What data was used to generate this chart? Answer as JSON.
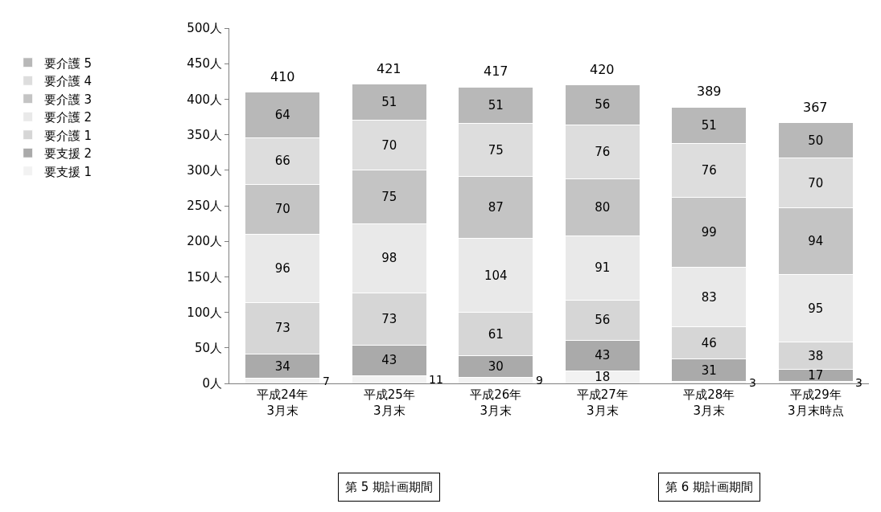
{
  "chart_data": {
    "type": "bar",
    "stacked": true,
    "categories": [
      "平成24年\n3月末",
      "平成25年\n3月末",
      "平成26年\n3月末",
      "平成27年\n3月末",
      "平成28年\n3月末",
      "平成29年\n3月末時点"
    ],
    "series": [
      {
        "name": "要支援 1",
        "color": "#f2f2f2",
        "values": [
          7,
          11,
          9,
          18,
          3,
          3
        ]
      },
      {
        "name": "要支援 2",
        "color": "#aaaaaa",
        "values": [
          34,
          43,
          30,
          43,
          31,
          17
        ]
      },
      {
        "name": "要介護 1",
        "color": "#d6d6d6",
        "values": [
          73,
          73,
          61,
          56,
          46,
          38
        ]
      },
      {
        "name": "要介護 2",
        "color": "#e9e9e9",
        "values": [
          96,
          98,
          104,
          91,
          83,
          95
        ]
      },
      {
        "name": "要介護 3",
        "color": "#c4c4c4",
        "values": [
          70,
          75,
          87,
          80,
          99,
          94
        ]
      },
      {
        "name": "要介護 4",
        "color": "#dddddd",
        "values": [
          66,
          70,
          75,
          76,
          76,
          70
        ]
      },
      {
        "name": "要介護 5",
        "color": "#b8b8b8",
        "values": [
          64,
          51,
          51,
          56,
          51,
          50
        ]
      }
    ],
    "totals": [
      "410",
      "421",
      "417",
      "420",
      "389",
      "367"
    ],
    "ylim": [
      0,
      500
    ],
    "yticks": [
      {
        "value": 0,
        "label": "0人"
      },
      {
        "value": 50,
        "label": "50人"
      },
      {
        "value": 100,
        "label": "100人"
      },
      {
        "value": 150,
        "label": "150人"
      },
      {
        "value": 200,
        "label": "200人"
      },
      {
        "value": 250,
        "label": "250人"
      },
      {
        "value": 300,
        "label": "300人"
      },
      {
        "value": 350,
        "label": "350人"
      },
      {
        "value": 400,
        "label": "400人"
      },
      {
        "value": 450,
        "label": "450人"
      },
      {
        "value": 500,
        "label": "500人"
      }
    ],
    "annotations": [
      "第 5 期計画期間",
      "第 6 期計画期間"
    ],
    "data_labels": true,
    "legend": "left"
  }
}
